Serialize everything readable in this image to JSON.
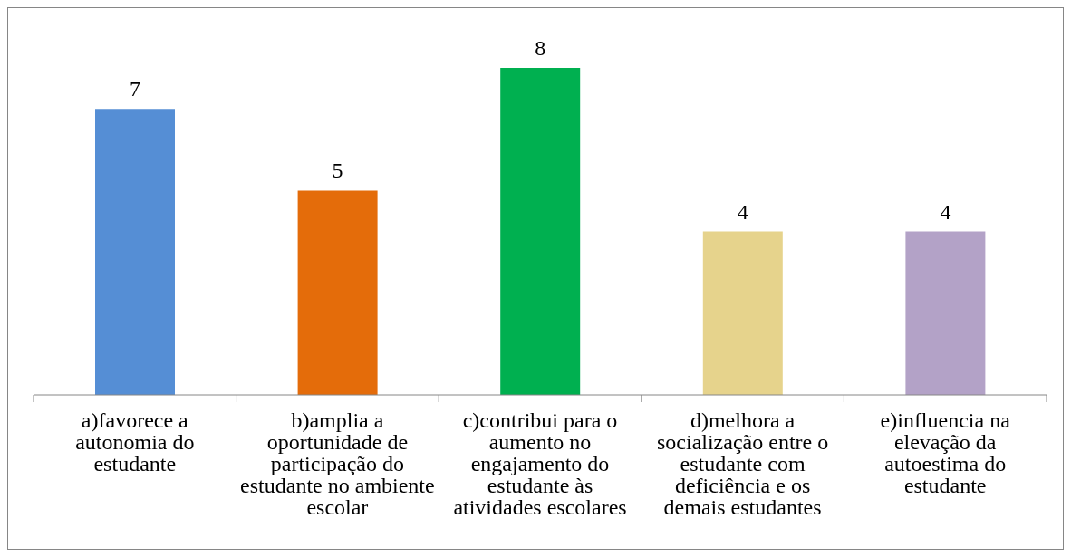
{
  "chart_data": {
    "type": "bar",
    "categories": [
      "a)favorece a autonomia do estudante",
      "b)amplia a oportunidade de participação do estudante no ambiente escolar",
      "c)contribui para o aumento no engajamento do estudante às atividades escolares",
      "d)melhora a socialização entre o estudante com deficiência e os demais estudantes",
      "e)influencia na elevação da autoestima do estudante"
    ],
    "values": [
      7,
      5,
      8,
      4,
      4
    ],
    "colors": [
      "#558ed5",
      "#e46c0a",
      "#00b050",
      "#e6d38c",
      "#b3a2c7"
    ],
    "data_labels": true
  }
}
